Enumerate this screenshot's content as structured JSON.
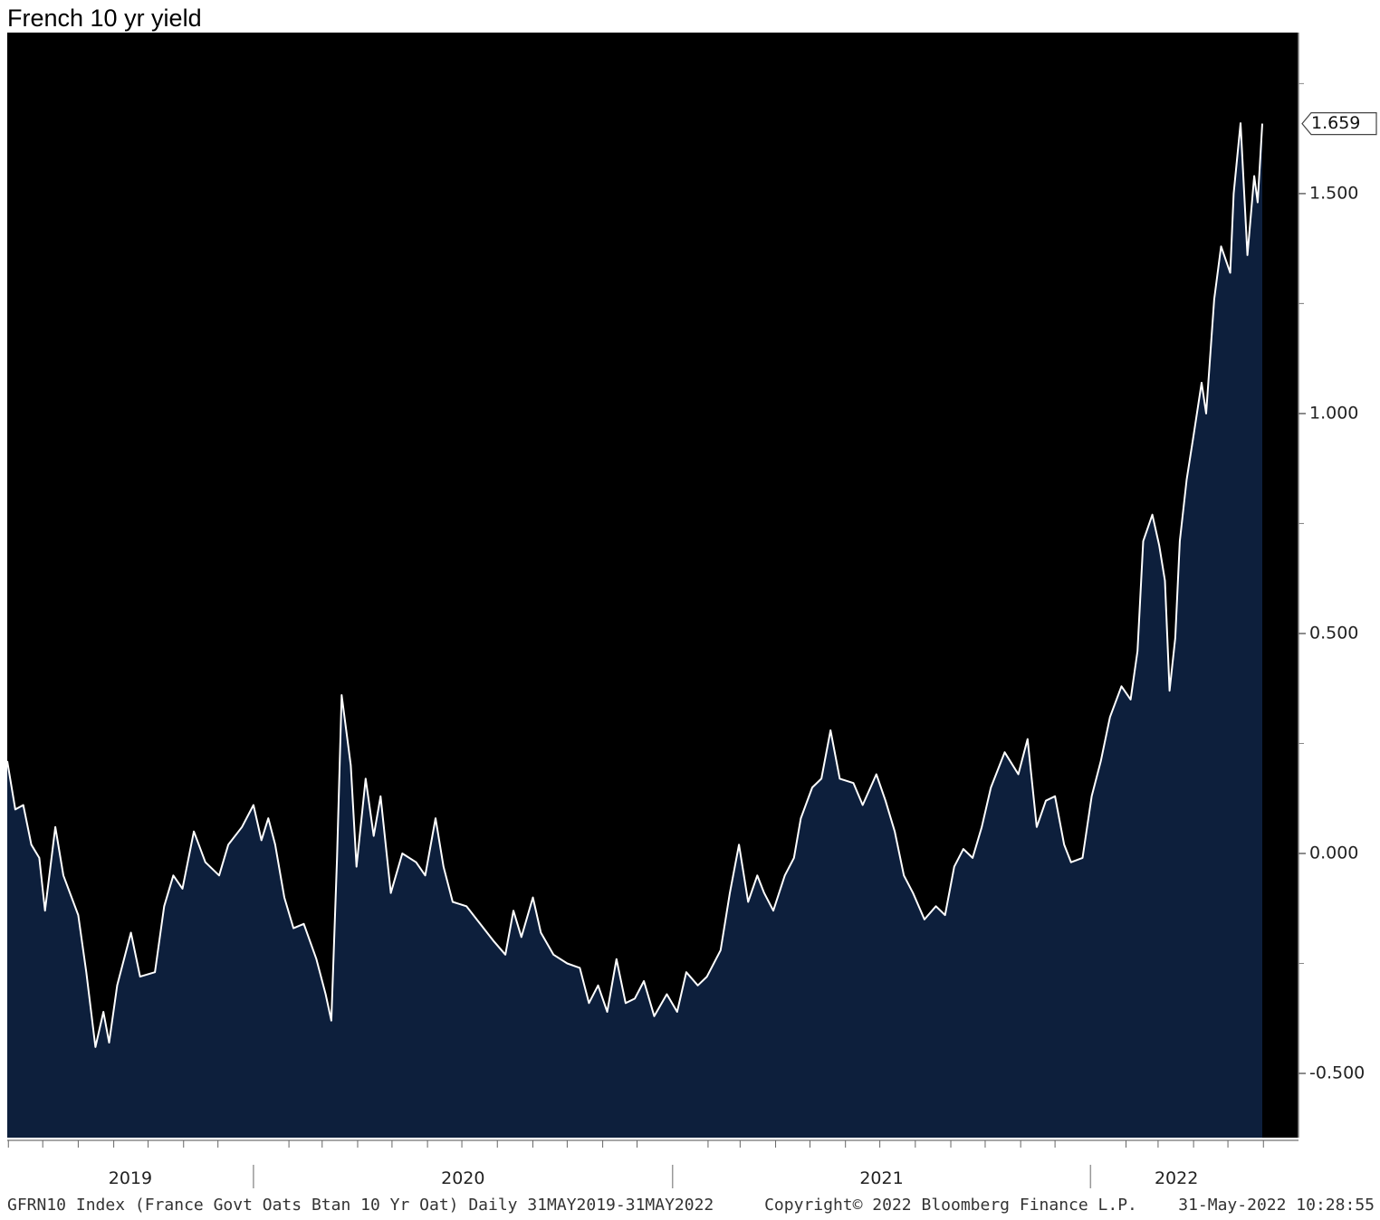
{
  "chart_data": {
    "type": "area",
    "title": "French 10 yr yield",
    "footer_left": "GFRN10 Index (France Govt Oats Btan 10 Yr Oat)  Daily 31MAY2019-31MAY2022",
    "footer_center": "Copyright© 2022 Bloomberg Finance L.P.",
    "footer_right": "31-May-2022 10:28:55",
    "year_labels": [
      "2019",
      "2020",
      "2021",
      "2022"
    ],
    "line_color": "#ffffff",
    "fill_color": "#0d1f3c",
    "background": "#000000",
    "ylim": [
      -0.646,
      1.866
    ],
    "yticks": [
      {
        "value": -0.5,
        "label": "-0.500"
      },
      {
        "value": 0,
        "label": "0.000"
      },
      {
        "value": 0.5,
        "label": "0.500"
      },
      {
        "value": 1,
        "label": "1.000"
      },
      {
        "value": 1.5,
        "label": "1.500"
      }
    ],
    "x": [
      "2019-05-31",
      "2019-06-07",
      "2019-06-14",
      "2019-06-21",
      "2019-06-28",
      "2019-07-03",
      "2019-07-12",
      "2019-07-19",
      "2019-08-01",
      "2019-08-08",
      "2019-08-16",
      "2019-08-23",
      "2019-08-28",
      "2019-09-04",
      "2019-09-16",
      "2019-09-24",
      "2019-10-07",
      "2019-10-15",
      "2019-10-23",
      "2019-10-31",
      "2019-11-10",
      "2019-11-20",
      "2019-12-02",
      "2019-12-10",
      "2019-12-22",
      "2020-01-01",
      "2020-01-08",
      "2020-01-14",
      "2020-01-20",
      "2020-01-28",
      "2020-02-05",
      "2020-02-14",
      "2020-02-25",
      "2020-03-04",
      "2020-03-09",
      "2020-03-14",
      "2020-03-18",
      "2020-03-26",
      "2020-03-31",
      "2020-04-08",
      "2020-04-15",
      "2020-04-21",
      "2020-04-30",
      "2020-05-10",
      "2020-05-22",
      "2020-05-30",
      "2020-06-08",
      "2020-06-15",
      "2020-06-23",
      "2020-07-05",
      "2020-07-17",
      "2020-07-29",
      "2020-08-08",
      "2020-08-15",
      "2020-08-22",
      "2020-09-01",
      "2020-09-08",
      "2020-09-19",
      "2020-10-01",
      "2020-10-12",
      "2020-10-20",
      "2020-10-28",
      "2020-11-05",
      "2020-11-13",
      "2020-11-21",
      "2020-11-29",
      "2020-12-07",
      "2020-12-16",
      "2020-12-27",
      "2021-01-05",
      "2021-01-13",
      "2021-01-23",
      "2021-01-31",
      "2021-02-12",
      "2021-02-20",
      "2021-02-28",
      "2021-03-08",
      "2021-03-16",
      "2021-03-22",
      "2021-03-30",
      "2021-04-09",
      "2021-04-17",
      "2021-04-23",
      "2021-05-03",
      "2021-05-11",
      "2021-05-19",
      "2021-05-27",
      "2021-06-08",
      "2021-06-16",
      "2021-06-28",
      "2021-07-06",
      "2021-07-14",
      "2021-07-22",
      "2021-07-30",
      "2021-08-09",
      "2021-08-19",
      "2021-08-27",
      "2021-09-04",
      "2021-09-12",
      "2021-09-20",
      "2021-09-28",
      "2021-10-06",
      "2021-10-18",
      "2021-10-30",
      "2021-11-07",
      "2021-11-15",
      "2021-11-23",
      "2021-12-01",
      "2021-12-09",
      "2021-12-15",
      "2021-12-25",
      "2022-01-02",
      "2022-01-10",
      "2022-01-18",
      "2022-01-28",
      "2022-02-05",
      "2022-02-11",
      "2022-02-16",
      "2022-02-24",
      "2022-03-02",
      "2022-03-07",
      "2022-03-11",
      "2022-03-16",
      "2022-03-20",
      "2022-03-26",
      "2022-04-01",
      "2022-04-08",
      "2022-04-12",
      "2022-04-19",
      "2022-04-25",
      "2022-05-03",
      "2022-05-06",
      "2022-05-12",
      "2022-05-18",
      "2022-05-24",
      "2022-05-27",
      "2022-05-31"
    ],
    "values": [
      0.21,
      0.1,
      0.11,
      0.02,
      -0.01,
      -0.13,
      0.06,
      -0.05,
      -0.14,
      -0.27,
      -0.44,
      -0.36,
      -0.43,
      -0.3,
      -0.18,
      -0.28,
      -0.27,
      -0.12,
      -0.05,
      -0.08,
      0.05,
      -0.02,
      -0.05,
      0.02,
      0.06,
      0.11,
      0.03,
      0.08,
      0.02,
      -0.1,
      -0.17,
      -0.16,
      -0.24,
      -0.32,
      -0.38,
      -0.01,
      0.36,
      0.2,
      -0.03,
      0.17,
      0.04,
      0.13,
      -0.09,
      0.0,
      -0.02,
      -0.05,
      0.08,
      -0.03,
      -0.11,
      -0.12,
      -0.16,
      -0.2,
      -0.23,
      -0.13,
      -0.19,
      -0.1,
      -0.18,
      -0.23,
      -0.25,
      -0.26,
      -0.34,
      -0.3,
      -0.36,
      -0.24,
      -0.34,
      -0.33,
      -0.29,
      -0.37,
      -0.32,
      -0.36,
      -0.27,
      -0.3,
      -0.28,
      -0.22,
      -0.09,
      0.02,
      -0.11,
      -0.05,
      -0.09,
      -0.13,
      -0.05,
      -0.01,
      0.08,
      0.15,
      0.17,
      0.28,
      0.17,
      0.16,
      0.11,
      0.18,
      0.12,
      0.05,
      -0.05,
      -0.09,
      -0.15,
      -0.12,
      -0.14,
      -0.03,
      0.01,
      -0.01,
      0.06,
      0.15,
      0.23,
      0.18,
      0.26,
      0.06,
      0.12,
      0.13,
      0.02,
      -0.02,
      -0.01,
      0.13,
      0.21,
      0.31,
      0.38,
      0.35,
      0.46,
      0.71,
      0.77,
      0.7,
      0.62,
      0.37,
      0.49,
      0.71,
      0.85,
      0.95,
      1.07,
      1.0,
      1.26,
      1.38,
      1.32,
      1.5,
      1.66,
      1.36,
      1.54,
      1.48,
      1.659
    ]
  }
}
